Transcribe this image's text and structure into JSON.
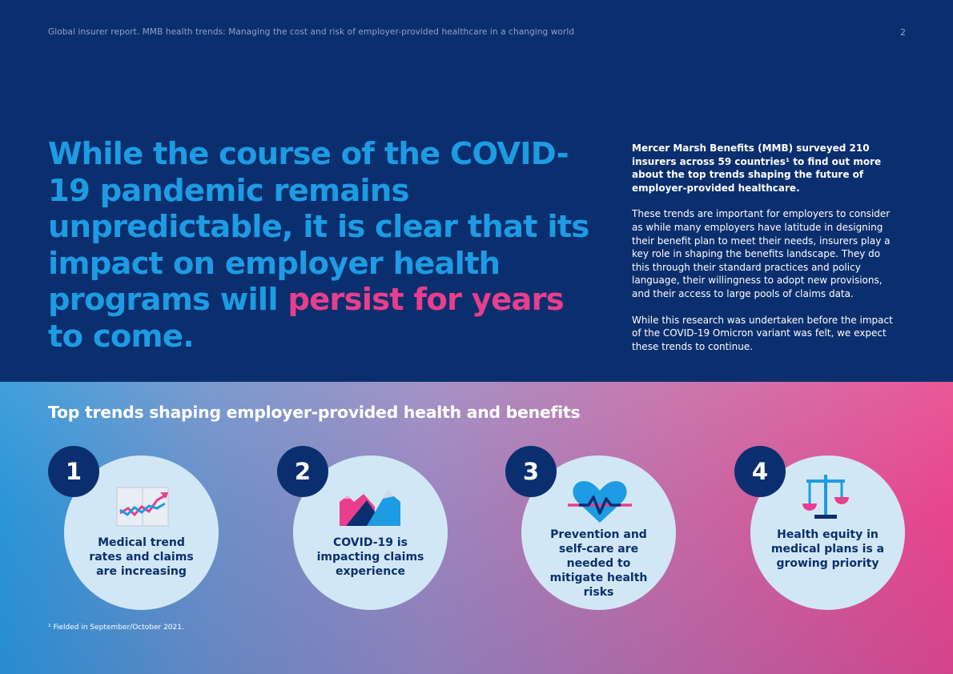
{
  "header": {
    "running_head": "Global insurer report. MMB health trends: Managing the cost and risk of employer-provided healthcare in a changing world",
    "page_number": "2"
  },
  "headline": {
    "part1": "While the course of the COVID-19 pandemic remains unpredictable, it is clear that its impact on employer health programs will ",
    "highlight": "persist for years",
    "part2": " to come."
  },
  "intro": {
    "lead": "Mercer Marsh Benefits (MMB) surveyed 210 insurers across 59 countries¹ to find out more about the top trends shaping the future of employer-provided healthcare.",
    "para2": "These trends are important for employers to consider as while many employers have latitude in designing their benefit plan to meet their needs, insurers play a key role in shaping the benefits landscape. They do this through their standard practices and policy language, their willingness to adopt new provisions, and their access to large pools of claims data.",
    "para3": "While this research was undertaken before the impact of the COVID-19 Omicron variant was felt, we expect these trends to continue."
  },
  "trends": {
    "title": "Top trends shaping employer-provided health and benefits",
    "items": [
      {
        "number": "1",
        "label": "Medical trend rates and claims are increasing",
        "icon": "trend-chart-icon"
      },
      {
        "number": "2",
        "label": "COVID-19 is impacting claims experience",
        "icon": "mountains-icon"
      },
      {
        "number": "3",
        "label": "Prevention and self-care are needed to mitigate health risks",
        "icon": "heart-pulse-icon"
      },
      {
        "number": "4",
        "label": "Health equity in medical plans is a growing priority",
        "icon": "scales-icon"
      }
    ]
  },
  "footnote": "¹ Fielded in September/October 2021.",
  "colors": {
    "navy": "#0b2f6e",
    "blue": "#1d9be3",
    "pink": "#e83e8c",
    "circle": "#d2e7f5"
  }
}
